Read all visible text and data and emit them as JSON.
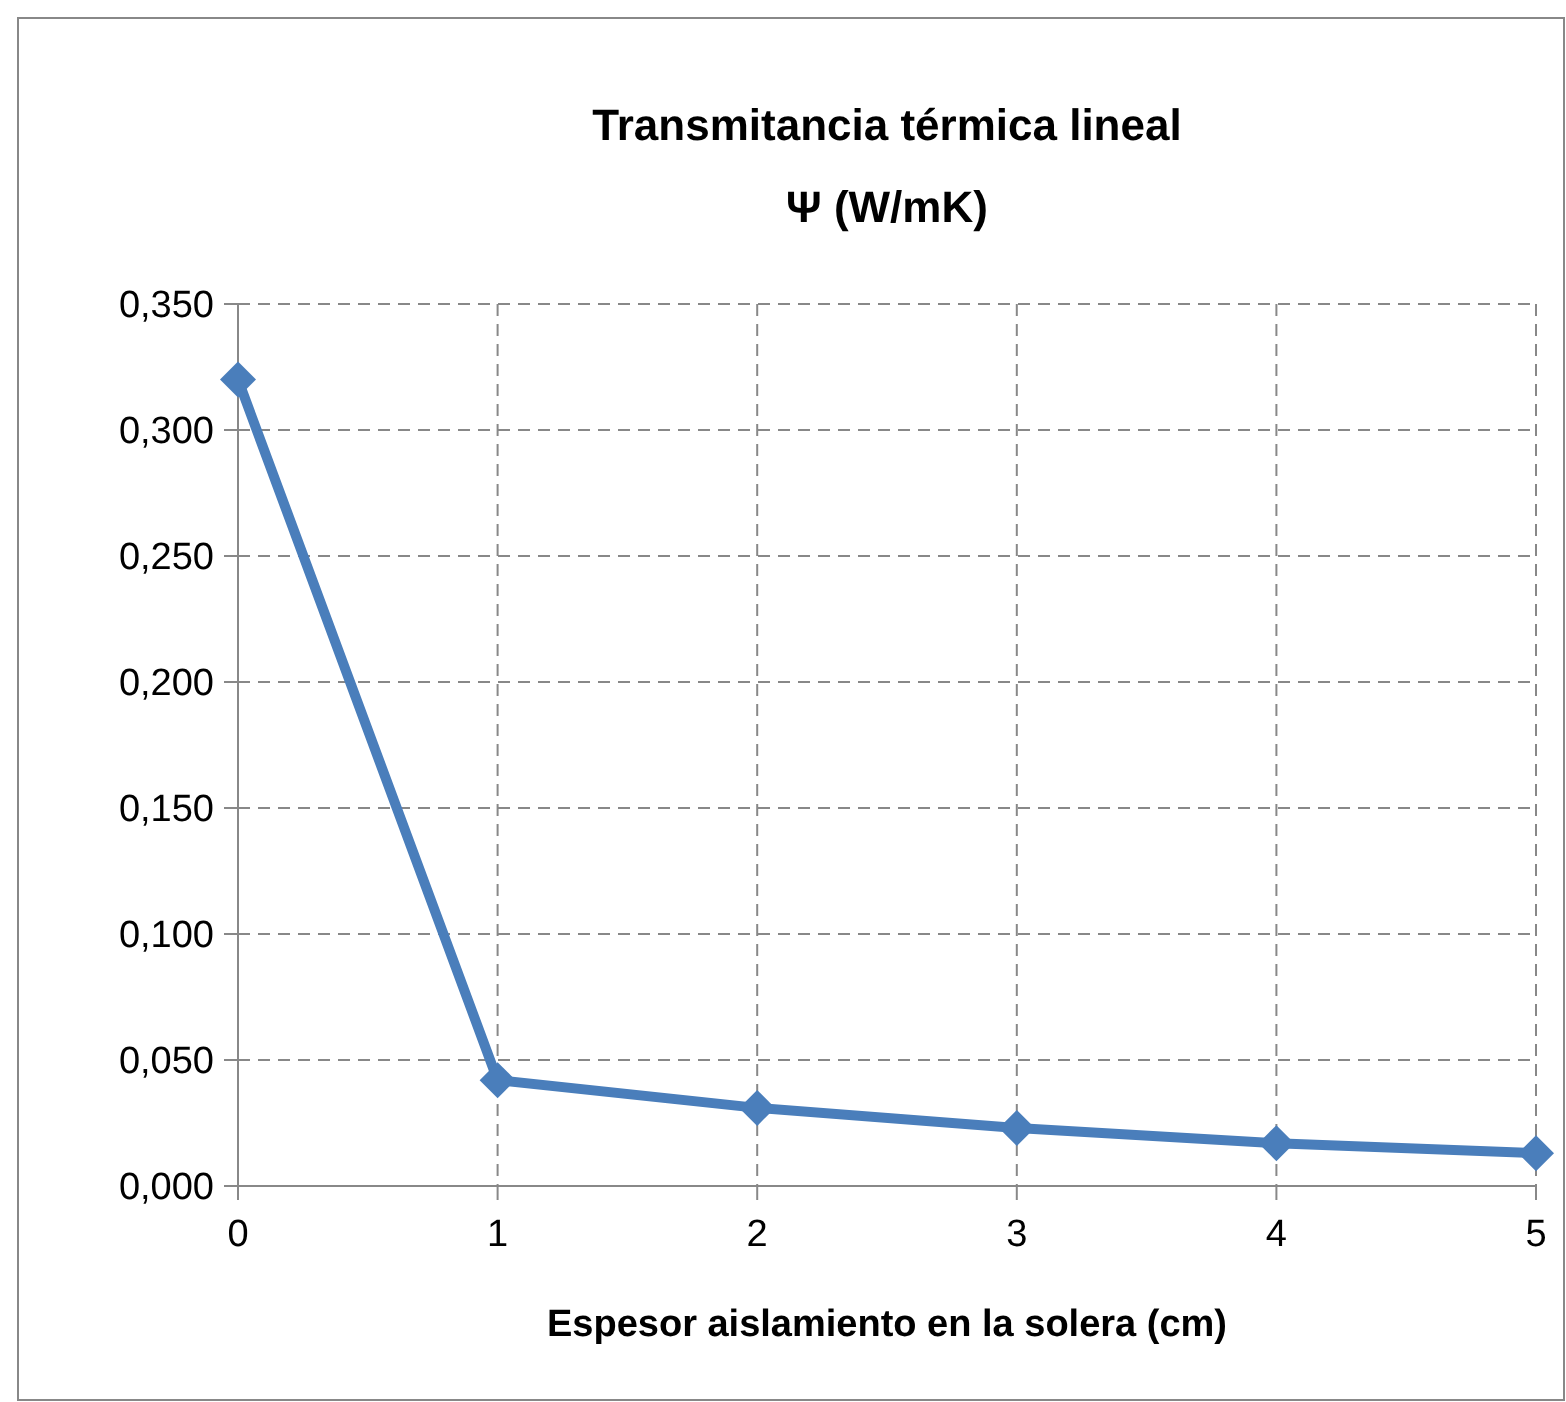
{
  "chart_data": {
    "type": "line",
    "title": "Transmitancia térmica lineal",
    "subtitle": "Ψ (W/mK)",
    "xlabel": "Espesor aislamiento en la solera (cm)",
    "x": [
      0,
      1,
      2,
      3,
      4,
      5
    ],
    "series": [
      {
        "color": "#4a7ebb",
        "values": [
          0.32,
          0.042,
          0.031,
          0.023,
          0.017,
          0.013
        ]
      }
    ],
    "xlim": [
      0,
      5
    ],
    "xticks": [
      0,
      1,
      2,
      3,
      4,
      5
    ],
    "ylim": [
      0,
      0.35
    ],
    "yticks": [
      {
        "value": 0,
        "label": "0,000"
      },
      {
        "value": 0.05,
        "label": "0,050"
      },
      {
        "value": 0.1,
        "label": "0,100"
      },
      {
        "value": 0.15,
        "label": "0,150"
      },
      {
        "value": 0.2,
        "label": "0,200"
      },
      {
        "value": 0.25,
        "label": "0,250"
      },
      {
        "value": 0.3,
        "label": "0,300"
      },
      {
        "value": 0.35,
        "label": "0,350"
      }
    ],
    "grid": true,
    "marker": "diamond",
    "line_style": "solid"
  }
}
